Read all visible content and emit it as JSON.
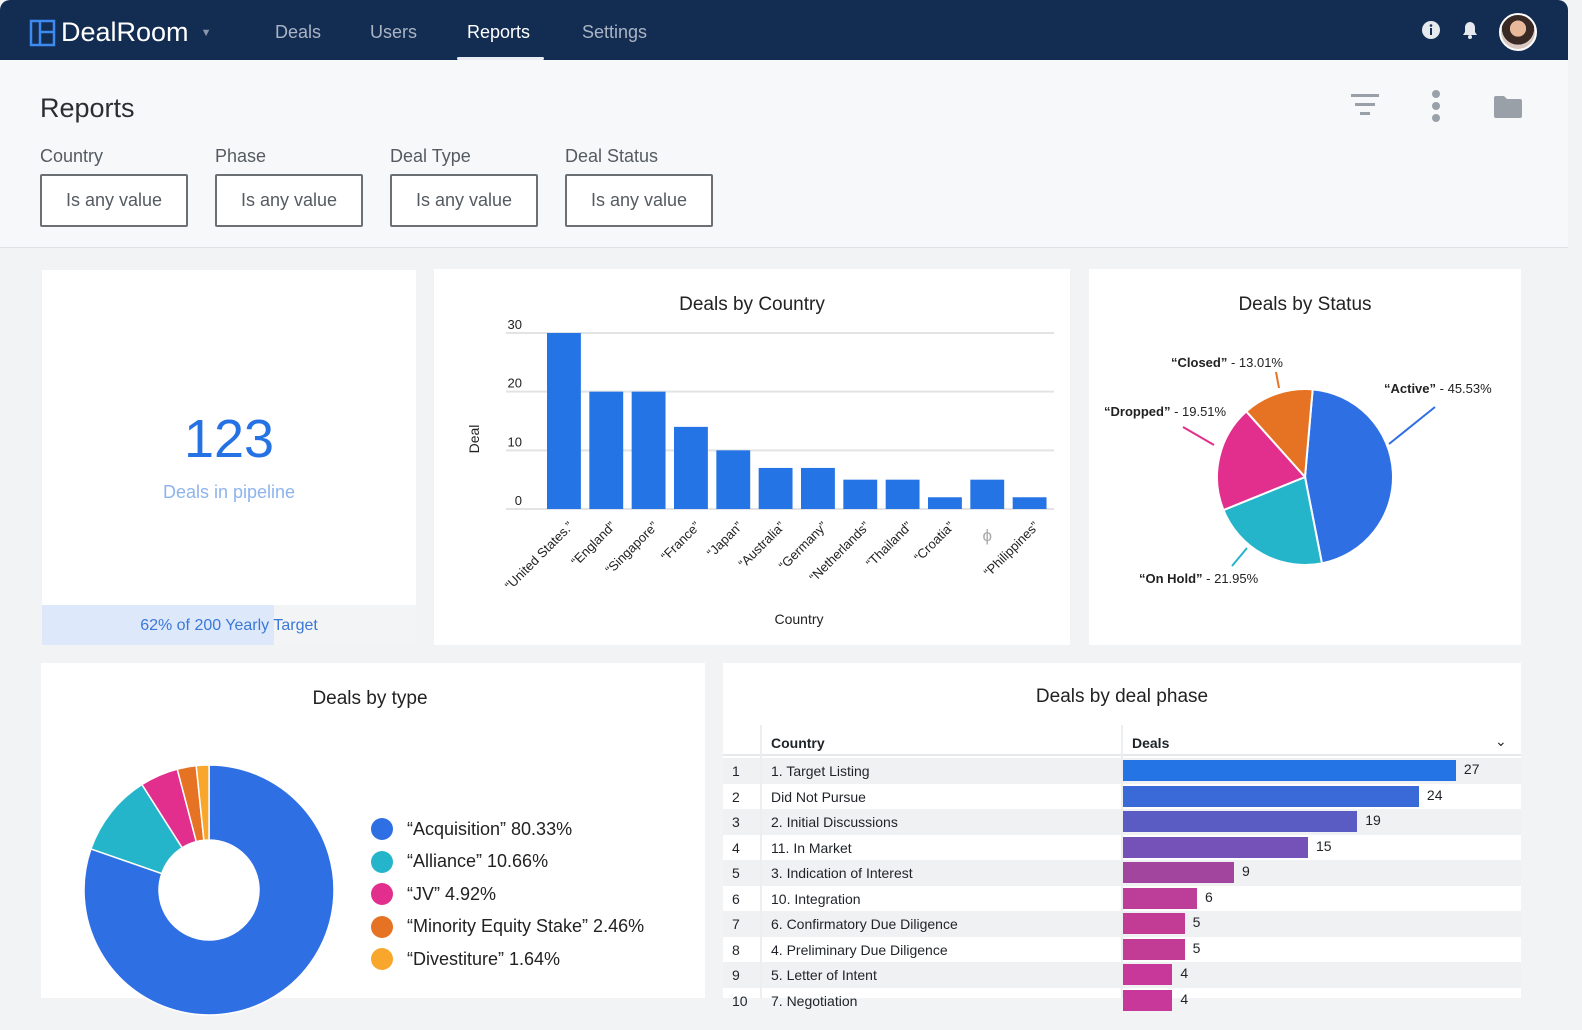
{
  "nav": {
    "brand": "DealRoom",
    "items": [
      {
        "label": "Deals"
      },
      {
        "label": "Users"
      },
      {
        "label": "Reports",
        "active": true
      },
      {
        "label": "Settings"
      }
    ]
  },
  "header": {
    "title": "Reports",
    "filters": [
      {
        "label": "Country",
        "value": "Is any value"
      },
      {
        "label": "Phase",
        "value": "Is any value"
      },
      {
        "label": "Deal Type",
        "value": "Is any value"
      },
      {
        "label": "Deal Status",
        "value": "Is any value"
      }
    ]
  },
  "kpi": {
    "value": "123",
    "label": "Deals in pipeline",
    "target_text": "62% of 200 Yearly Target",
    "progress": 0.62
  },
  "colors": {
    "accent": "#2474e5",
    "nav": "#132c52"
  },
  "chart_data": [
    {
      "type": "bar",
      "title": "Deals by Country",
      "xlabel": "Country",
      "ylabel": "Deal",
      "categories": [
        "“United States.”",
        "“England”",
        "“Singapore”",
        "“France”",
        "“Japan”",
        "“Australia”",
        "“Germany”",
        "“Netherlands”",
        "“Thailand”",
        "“Croatia”",
        "ϕ",
        "“Philippines”"
      ],
      "values": [
        30,
        20,
        20,
        14,
        10,
        7,
        7,
        5,
        5,
        2,
        5,
        2
      ],
      "yticks": [
        0,
        10,
        20,
        30
      ],
      "ylim": [
        0,
        30
      ],
      "color": "#2474e5",
      "grid": true
    },
    {
      "type": "pie",
      "title": "Deals by Status",
      "slices": [
        {
          "label": "“Active”",
          "pct_text": " - 45.53%",
          "value": 45.53,
          "color": "#2f6fe4"
        },
        {
          "label": "“On Hold”",
          "pct_text": " - 21.95%",
          "value": 21.95,
          "color": "#25b5cb"
        },
        {
          "label": "“Dropped”",
          "pct_text": " - 19.51%",
          "value": 19.51,
          "color": "#e22f8e"
        },
        {
          "label": "“Closed”",
          "pct_text": " - 13.01%",
          "value": 13.01,
          "color": "#e67224"
        }
      ]
    },
    {
      "type": "pie",
      "donut": true,
      "title": "Deals by type",
      "slices": [
        {
          "label": "“Acquisition” 80.33%",
          "value": 80.33,
          "color": "#2f6fe4"
        },
        {
          "label": "“Alliance” 10.66%",
          "value": 10.66,
          "color": "#25b5cb"
        },
        {
          "label": "“JV” 4.92%",
          "value": 4.92,
          "color": "#e22f8e"
        },
        {
          "label": "“Minority Equity Stake” 2.46%",
          "value": 2.46,
          "color": "#e67224"
        },
        {
          "label": "“Divestiture” 1.64%",
          "value": 1.64,
          "color": "#f8a72c"
        }
      ]
    },
    {
      "type": "table",
      "title": "Deals by deal phase",
      "columns": [
        "Country",
        "Deals"
      ],
      "rows": [
        {
          "n": "1",
          "name": "1. Target Listing",
          "value": 27,
          "color": "#2474e5"
        },
        {
          "n": "2",
          "name": "Did Not Pursue",
          "value": 24,
          "color": "#3a6ad8"
        },
        {
          "n": "3",
          "name": "2. Initial Discussions",
          "value": 19,
          "color": "#5a5cc4"
        },
        {
          "n": "4",
          "name": "11. In Market",
          "value": 15,
          "color": "#7452b8"
        },
        {
          "n": "5",
          "name": "3. Indication of Interest",
          "value": 9,
          "color": "#a2459e"
        },
        {
          "n": "6",
          "name": "10. Integration",
          "value": 6,
          "color": "#bc3e98"
        },
        {
          "n": "7",
          "name": "6. Confirmatory Due Diligence",
          "value": 5,
          "color": "#c23c96"
        },
        {
          "n": "8",
          "name": "4. Preliminary Due Diligence",
          "value": 5,
          "color": "#c23c96"
        },
        {
          "n": "9",
          "name": "5. Letter of Intent",
          "value": 4,
          "color": "#c8389a"
        },
        {
          "n": "10",
          "name": "7. Negotiation",
          "value": 4,
          "color": "#c8389a"
        }
      ]
    }
  ]
}
